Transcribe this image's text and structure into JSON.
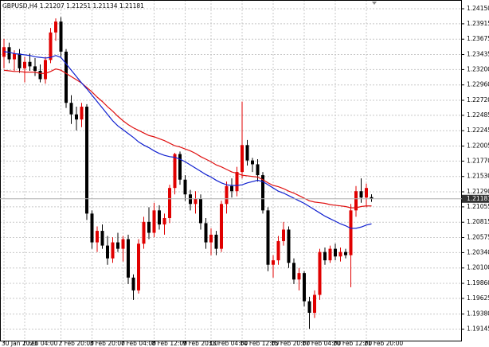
{
  "chart_data": {
    "type": "candlestick",
    "symbol": "GBPUSD,H4",
    "up_color": "#e00000",
    "down_color": "#000000",
    "ylim": [
      1.18965,
      1.24287
    ],
    "yticks": [
      {
        "value": 1.2415,
        "label": "1.24150"
      },
      1.23915,
      1.23675,
      1.23435,
      {
        "value": 1.232,
        "label": "1.23200"
      },
      {
        "value": 1.2296,
        "label": "1.22960"
      },
      {
        "value": 1.2272,
        "label": "1.22720"
      },
      1.22485,
      1.22245,
      1.22005,
      {
        "value": 1.2177,
        "label": "1.21770"
      },
      {
        "value": 1.2153,
        "label": "1.21530"
      },
      {
        "value": 1.2129,
        "label": "1.21290"
      },
      1.21055,
      1.20815,
      1.20575,
      {
        "value": 1.2034,
        "label": "1.20340"
      },
      {
        "value": 1.201,
        "label": "1.20100"
      },
      {
        "value": 1.1986,
        "label": "1.19860"
      },
      1.19625,
      {
        "value": 1.1938,
        "label": "1.19380"
      },
      1.19145
    ],
    "grid": true,
    "categories": [
      "30 Jan 2023",
      null,
      null,
      null,
      "1 Feb 04:00",
      null,
      null,
      null,
      null,
      null,
      null,
      "2 Feb 20:00",
      null,
      null,
      null,
      null,
      null,
      "3 Feb 20:00",
      null,
      null,
      null,
      null,
      null,
      "7 Feb 04:00",
      null,
      null,
      null,
      null,
      null,
      "8 Feb 12:00",
      null,
      null,
      null,
      null,
      null,
      "9 Feb 20:00",
      null,
      null,
      null,
      null,
      "13 Feb 04:00",
      null,
      null,
      null,
      null,
      null,
      "14 Feb 12:00",
      null,
      null,
      null,
      null,
      null,
      "15 Feb 20:00",
      null,
      null,
      null,
      null,
      null,
      "17 Feb 04:00",
      null,
      null,
      null,
      null,
      null,
      "20 Feb 12:00",
      null,
      null,
      null,
      null,
      null,
      "21 Feb 20:00",
      null
    ],
    "ohlc": [
      [
        1.234,
        1.2368,
        1.2322,
        1.2355
      ],
      [
        1.2355,
        1.2362,
        1.233,
        1.2336
      ],
      [
        1.2336,
        1.235,
        1.2318,
        1.2345
      ],
      [
        1.2345,
        1.2352,
        1.2315,
        1.2322
      ],
      [
        1.2322,
        1.234,
        1.23,
        1.2332
      ],
      [
        1.2332,
        1.2345,
        1.2318,
        1.2325
      ],
      [
        1.2325,
        1.2338,
        1.231,
        1.2318
      ],
      [
        1.2318,
        1.2328,
        1.23,
        1.2305
      ],
      [
        1.2305,
        1.234,
        1.2298,
        1.2335
      ],
      [
        1.2335,
        1.2385,
        1.233,
        1.2378
      ],
      [
        1.2378,
        1.24,
        1.2365,
        1.2395
      ],
      [
        1.2395,
        1.2402,
        1.234,
        1.2348
      ],
      [
        1.2348,
        1.2352,
        1.226,
        1.2268
      ],
      [
        1.2268,
        1.228,
        1.2235,
        1.225
      ],
      [
        1.225,
        1.2262,
        1.2225,
        1.2242
      ],
      [
        1.2242,
        1.2268,
        1.223,
        1.2262
      ],
      [
        1.2262,
        1.2266,
        1.2085,
        1.2095
      ],
      [
        1.2095,
        1.21,
        1.204,
        1.205
      ],
      [
        1.205,
        1.2075,
        1.2035,
        1.2068
      ],
      [
        1.2068,
        1.2078,
        1.204,
        1.2045
      ],
      [
        1.2045,
        1.206,
        1.2015,
        1.2025
      ],
      [
        1.2025,
        1.2058,
        1.2018,
        1.205
      ],
      [
        1.205,
        1.2065,
        1.2035,
        1.204
      ],
      [
        1.204,
        1.206,
        1.202,
        1.2055
      ],
      [
        1.2055,
        1.2062,
        1.1985,
        1.1995
      ],
      [
        1.1995,
        1.2,
        1.196,
        1.1975
      ],
      [
        1.1975,
        1.2055,
        1.197,
        1.2048
      ],
      [
        1.2048,
        1.209,
        1.204,
        1.2082
      ],
      [
        1.2082,
        1.2105,
        1.2055,
        1.2065
      ],
      [
        1.2065,
        1.2112,
        1.2058,
        1.21
      ],
      [
        1.21,
        1.2108,
        1.207,
        1.2078
      ],
      [
        1.2078,
        1.2095,
        1.2062,
        1.2088
      ],
      [
        1.2088,
        1.214,
        1.208,
        1.2135
      ],
      [
        1.2135,
        1.219,
        1.2125,
        1.2188
      ],
      [
        1.2188,
        1.2192,
        1.214,
        1.2148
      ],
      [
        1.2148,
        1.2155,
        1.2115,
        1.2125
      ],
      [
        1.2125,
        1.2132,
        1.21,
        1.211
      ],
      [
        1.211,
        1.213,
        1.2095,
        1.2118
      ],
      [
        1.2118,
        1.2125,
        1.207,
        1.208
      ],
      [
        1.208,
        1.2088,
        1.204,
        1.205
      ],
      [
        1.205,
        1.2072,
        1.203,
        1.2062
      ],
      [
        1.2062,
        1.2068,
        1.203,
        1.204
      ],
      [
        1.204,
        1.2115,
        1.2035,
        1.211
      ],
      [
        1.211,
        1.2145,
        1.2095,
        1.2138
      ],
      [
        1.2138,
        1.215,
        1.212,
        1.213
      ],
      [
        1.213,
        1.2168,
        1.2122,
        1.216
      ],
      [
        1.216,
        1.227,
        1.215,
        1.2202
      ],
      [
        1.2202,
        1.221,
        1.217,
        1.2178
      ],
      [
        1.2178,
        1.2182,
        1.216,
        1.2172
      ],
      [
        1.2172,
        1.218,
        1.2145,
        1.2155
      ],
      [
        1.2155,
        1.216,
        1.2095,
        1.21
      ],
      [
        1.21,
        1.2105,
        1.2005,
        1.2015
      ],
      [
        1.2015,
        1.203,
        1.1995,
        1.2022
      ],
      [
        1.2022,
        1.206,
        1.2015,
        1.2052
      ],
      [
        1.2052,
        1.2082,
        1.2045,
        1.207
      ],
      [
        1.207,
        1.2075,
        1.201,
        1.2018
      ],
      [
        1.2018,
        1.2025,
        1.1985,
        1.1992
      ],
      [
        1.1992,
        1.201,
        1.1975,
        1.2002
      ],
      [
        1.2002,
        1.2005,
        1.195,
        1.1958
      ],
      [
        1.1958,
        1.1965,
        1.1915,
        1.194
      ],
      [
        1.194,
        1.1975,
        1.1932,
        1.1968
      ],
      [
        1.1968,
        1.204,
        1.196,
        1.2035
      ],
      [
        1.2035,
        1.2042,
        1.2015,
        1.2022
      ],
      [
        1.2022,
        1.2045,
        1.2018,
        1.204
      ],
      [
        1.204,
        1.2048,
        1.2022,
        1.2028
      ],
      [
        1.2028,
        1.2042,
        1.202,
        1.2035
      ],
      [
        1.2035,
        1.204,
        1.2025,
        1.203
      ],
      [
        1.203,
        1.211,
        1.198,
        1.21
      ],
      [
        1.21,
        1.2138,
        1.209,
        1.213
      ],
      [
        1.213,
        1.215,
        1.2112,
        1.212
      ],
      [
        1.212,
        1.2142,
        1.2105,
        1.2135
      ],
      [
        1.21207,
        1.21251,
        1.21134,
        1.21181
      ]
    ],
    "lines": [
      {
        "color": "#e01010",
        "values": [
          1.2319,
          1.2318,
          1.2317,
          1.2317,
          1.2316,
          1.2316,
          1.2316,
          1.2314,
          1.2314,
          1.2317,
          1.2321,
          1.2319,
          1.2314,
          1.2309,
          1.2304,
          1.2299,
          1.2292,
          1.2285,
          1.2277,
          1.227,
          1.2262,
          1.2255,
          1.2247,
          1.224,
          1.2234,
          1.2229,
          1.2225,
          1.2221,
          1.2217,
          1.2215,
          1.2212,
          1.2209,
          1.2205,
          1.2201,
          1.2199,
          1.2196,
          1.2193,
          1.2189,
          1.2184,
          1.218,
          1.2176,
          1.2171,
          1.2168,
          1.2164,
          1.216,
          1.2158,
          1.2155,
          1.2154,
          1.2153,
          1.2152,
          1.2148,
          1.2143,
          1.2139,
          1.2137,
          1.2134,
          1.213,
          1.2127,
          1.2123,
          1.2119,
          1.2115,
          1.2113,
          1.2112,
          1.2111,
          1.2109,
          1.2108,
          1.2107,
          1.2106,
          1.2104,
          1.2104,
          1.2106,
          1.2107,
          1.2107
        ]
      },
      {
        "color": "#1020d0",
        "values": [
          1.2348,
          1.2347,
          1.2345,
          1.2344,
          1.2343,
          1.2342,
          1.234,
          1.2339,
          1.2338,
          1.2339,
          1.2342,
          1.2339,
          1.2329,
          1.2319,
          1.2309,
          1.2299,
          1.229,
          1.228,
          1.227,
          1.226,
          1.225,
          1.224,
          1.2232,
          1.2226,
          1.222,
          1.2214,
          1.2207,
          1.2202,
          1.2198,
          1.2193,
          1.2189,
          1.2186,
          1.2184,
          1.2183,
          1.218,
          1.2176,
          1.2171,
          1.2166,
          1.2161,
          1.2156,
          1.2152,
          1.2147,
          1.2143,
          1.214,
          1.2139,
          1.2139,
          1.214,
          1.2143,
          1.2145,
          1.2147,
          1.2145,
          1.214,
          1.2135,
          1.213,
          1.2127,
          1.2123,
          1.2119,
          1.2115,
          1.2111,
          1.2106,
          1.2101,
          1.2096,
          1.2091,
          1.2087,
          1.2083,
          1.2079,
          1.2076,
          1.2072,
          1.2072,
          1.2074,
          1.2077,
          1.2079
        ]
      }
    ]
  }
}
